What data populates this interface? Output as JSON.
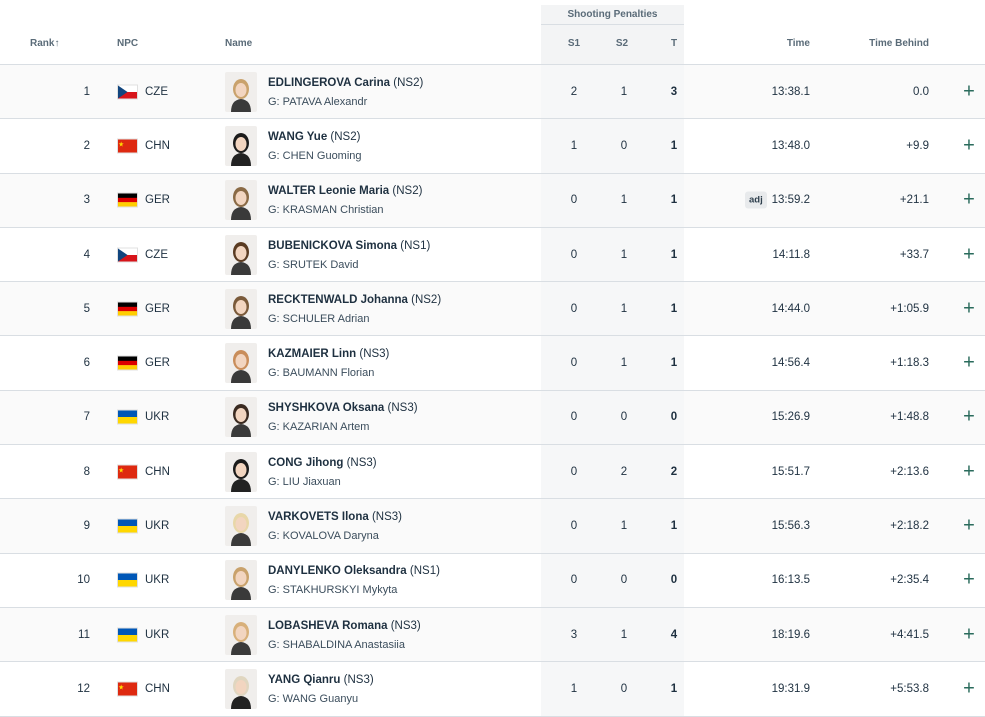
{
  "header": {
    "group_label": "Shooting Penalties",
    "rank": "Rank",
    "rank_sort_icon": "arrow-up-icon",
    "npc": "NPC",
    "name": "Name",
    "s1": "S1",
    "s2": "S2",
    "t": "T",
    "time": "Time",
    "time_behind": "Time Behind"
  },
  "colors": {
    "accent": "#2a6b5c",
    "header_text": "#5a6b78",
    "row_border": "#d9dee3"
  },
  "rows": [
    {
      "rank": "1",
      "npc": "CZE",
      "athlete": "EDLINGEROVA Carina",
      "cls": "(NS2)",
      "guide": "G: PATAVA Alexandr",
      "s1": "2",
      "s2": "1",
      "t": "3",
      "time": "13:38.1",
      "behind": "0.0",
      "adj": ""
    },
    {
      "rank": "2",
      "npc": "CHN",
      "athlete": "WANG Yue",
      "cls": "(NS2)",
      "guide": "G: CHEN Guoming",
      "s1": "1",
      "s2": "0",
      "t": "1",
      "time": "13:48.0",
      "behind": "+9.9",
      "adj": ""
    },
    {
      "rank": "3",
      "npc": "GER",
      "athlete": "WALTER Leonie Maria",
      "cls": "(NS2)",
      "guide": "G: KRASMAN Christian",
      "s1": "0",
      "s2": "1",
      "t": "1",
      "time": "13:59.2",
      "behind": "+21.1",
      "adj": "adj"
    },
    {
      "rank": "4",
      "npc": "CZE",
      "athlete": "BUBENICKOVA Simona",
      "cls": "(NS1)",
      "guide": "G: SRUTEK David",
      "s1": "0",
      "s2": "1",
      "t": "1",
      "time": "14:11.8",
      "behind": "+33.7",
      "adj": ""
    },
    {
      "rank": "5",
      "npc": "GER",
      "athlete": "RECKTENWALD Johanna",
      "cls": "(NS2)",
      "guide": "G: SCHULER Adrian",
      "s1": "0",
      "s2": "1",
      "t": "1",
      "time": "14:44.0",
      "behind": "+1:05.9",
      "adj": ""
    },
    {
      "rank": "6",
      "npc": "GER",
      "athlete": "KAZMAIER Linn",
      "cls": "(NS3)",
      "guide": "G: BAUMANN Florian",
      "s1": "0",
      "s2": "1",
      "t": "1",
      "time": "14:56.4",
      "behind": "+1:18.3",
      "adj": ""
    },
    {
      "rank": "7",
      "npc": "UKR",
      "athlete": "SHYSHKOVA Oksana",
      "cls": "(NS3)",
      "guide": "G: KAZARIAN Artem",
      "s1": "0",
      "s2": "0",
      "t": "0",
      "time": "15:26.9",
      "behind": "+1:48.8",
      "adj": ""
    },
    {
      "rank": "8",
      "npc": "CHN",
      "athlete": "CONG Jihong",
      "cls": "(NS3)",
      "guide": "G: LIU Jiaxuan",
      "s1": "0",
      "s2": "2",
      "t": "2",
      "time": "15:51.7",
      "behind": "+2:13.6",
      "adj": ""
    },
    {
      "rank": "9",
      "npc": "UKR",
      "athlete": "VARKOVETS Ilona",
      "cls": "(NS3)",
      "guide": "G: KOVALOVA Daryna",
      "s1": "0",
      "s2": "1",
      "t": "1",
      "time": "15:56.3",
      "behind": "+2:18.2",
      "adj": ""
    },
    {
      "rank": "10",
      "npc": "UKR",
      "athlete": "DANYLENKO Oleksandra",
      "cls": "(NS1)",
      "guide": "G: STAKHURSKYI Mykyta",
      "s1": "0",
      "s2": "0",
      "t": "0",
      "time": "16:13.5",
      "behind": "+2:35.4",
      "adj": ""
    },
    {
      "rank": "11",
      "npc": "UKR",
      "athlete": "LOBASHEVA Romana",
      "cls": "(NS3)",
      "guide": "G: SHABALDINA Anastasiia",
      "s1": "3",
      "s2": "1",
      "t": "4",
      "time": "18:19.6",
      "behind": "+4:41.5",
      "adj": ""
    },
    {
      "rank": "12",
      "npc": "CHN",
      "athlete": "YANG Qianru",
      "cls": "(NS3)",
      "guide": "G: WANG Guanyu",
      "s1": "1",
      "s2": "0",
      "t": "1",
      "time": "19:31.9",
      "behind": "+5:53.8",
      "adj": ""
    }
  ],
  "expand_label": "+"
}
